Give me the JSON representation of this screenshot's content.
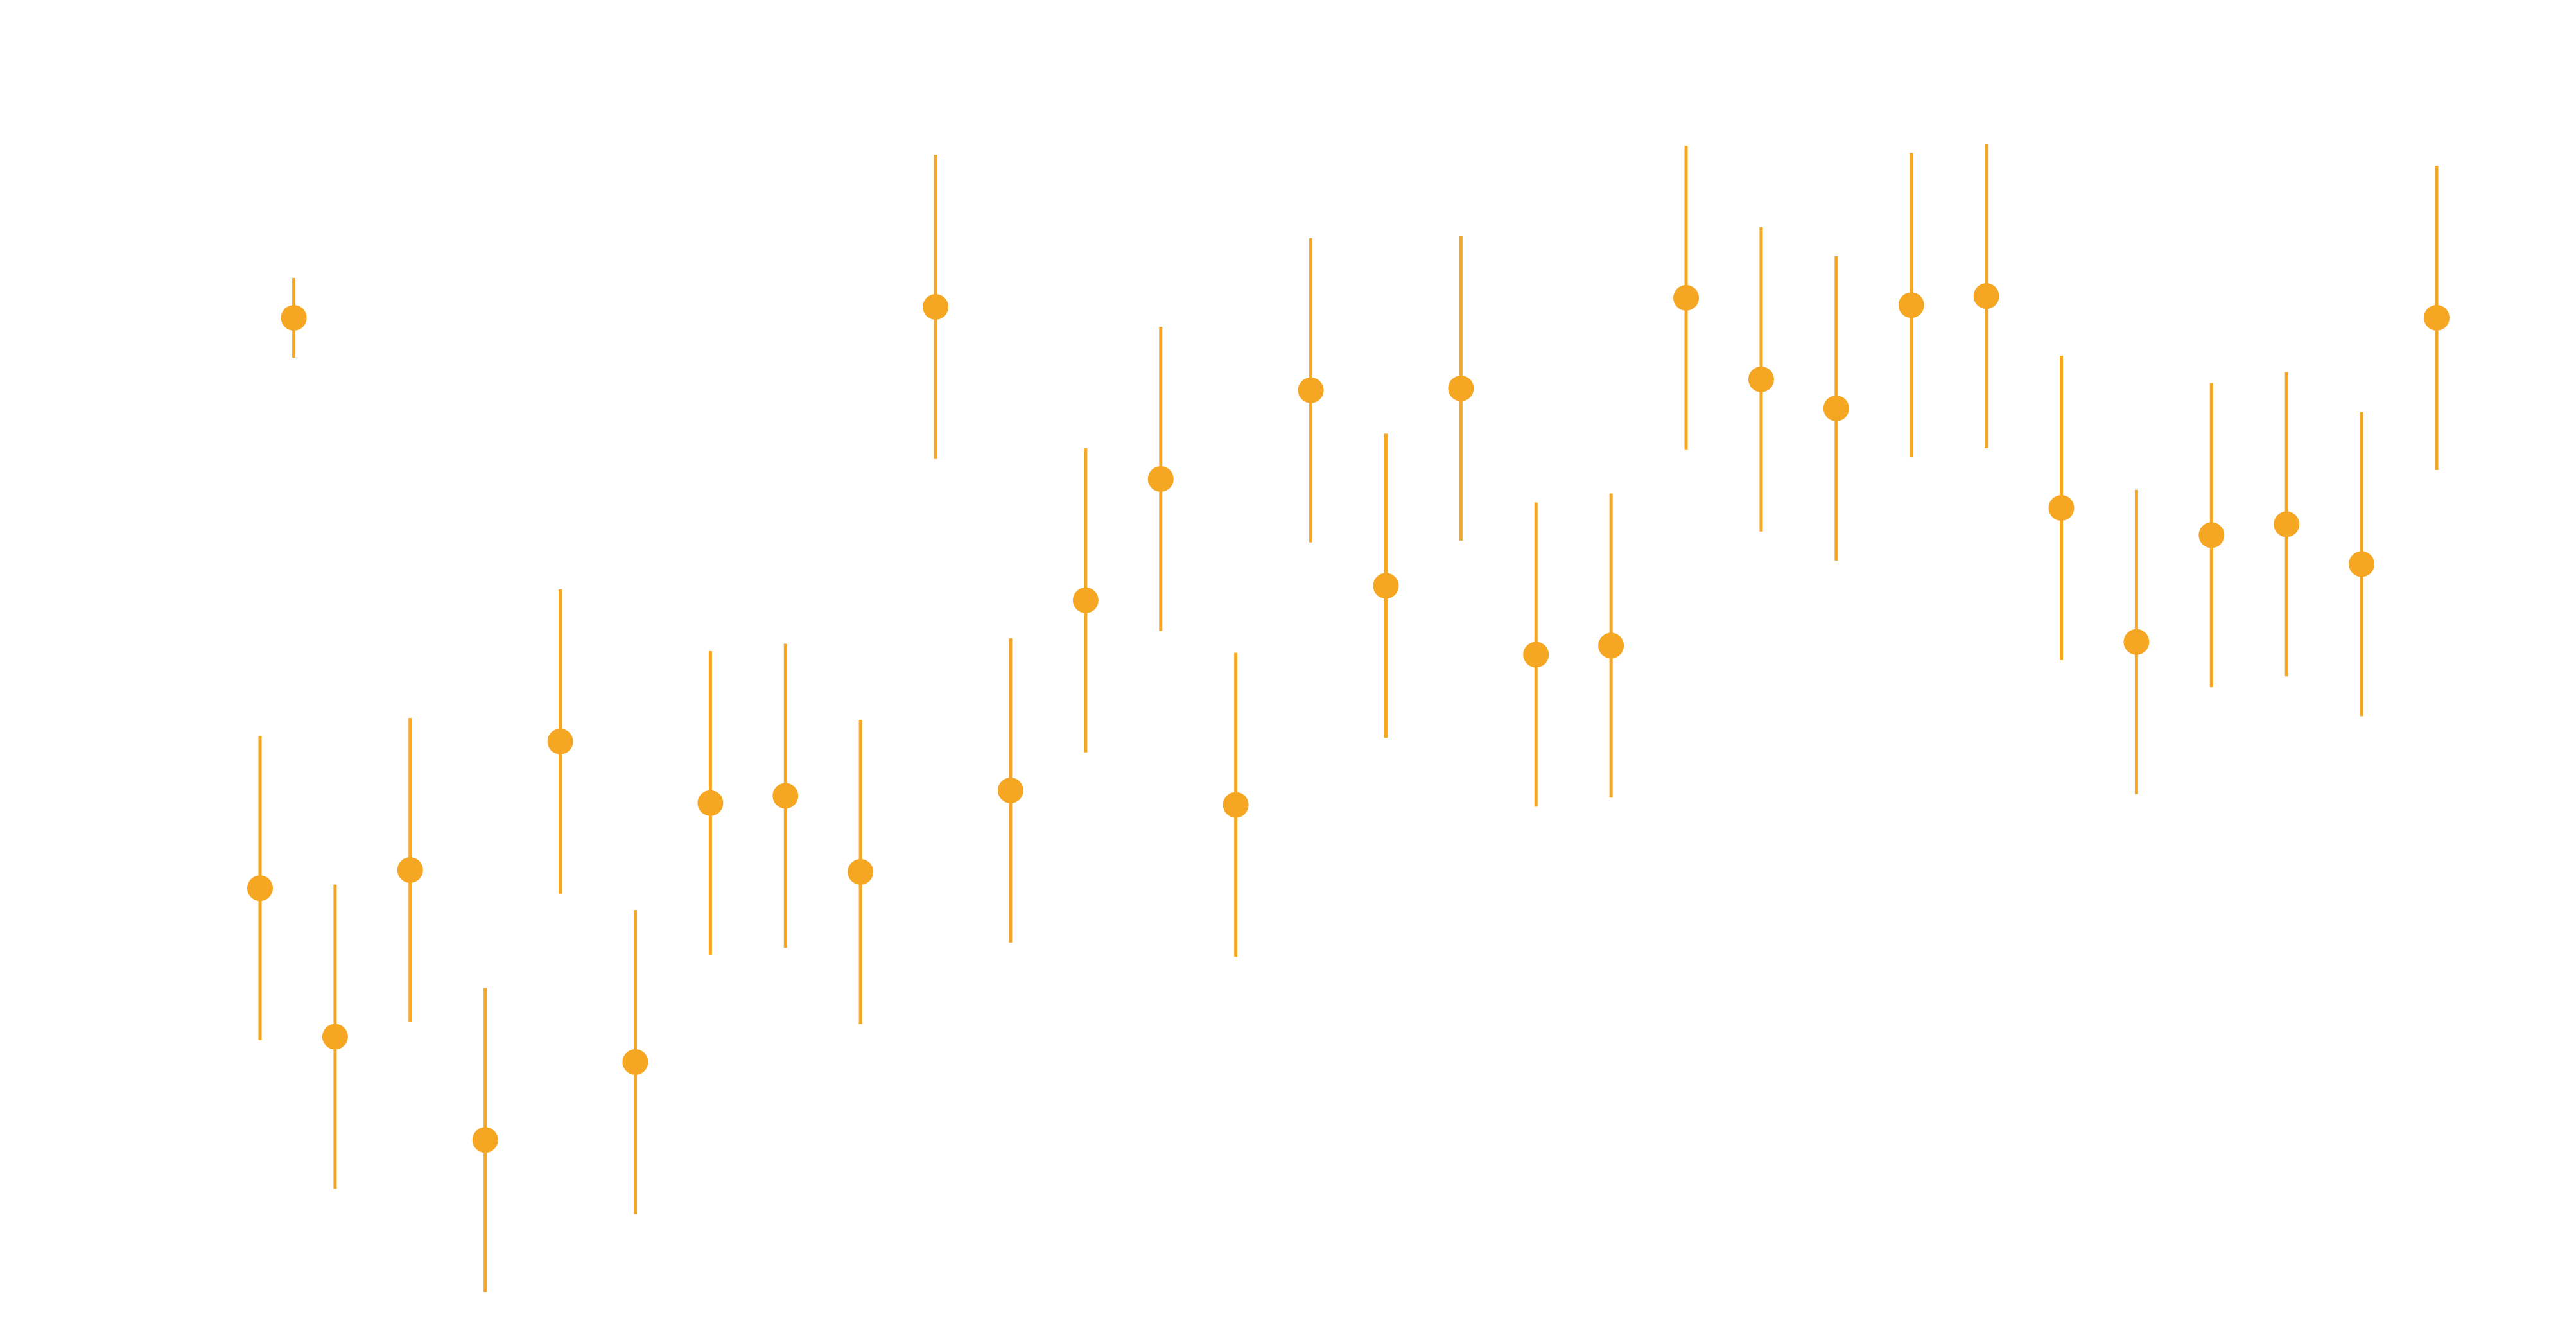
{
  "chart_data": {
    "type": "scatter",
    "error_bars": true,
    "title": "",
    "xlabel": "",
    "ylabel": "",
    "xlim": [
      1,
      30.5
    ],
    "ylim": [
      0.35,
      1.0
    ],
    "grid": false,
    "legend": "none",
    "colors": {
      "marker": "#F5A623",
      "error_bar": "#F5A623",
      "background": "#FFFFFF"
    },
    "series": [
      {
        "points": [
          {
            "x": 1.45,
            "y": 0.883,
            "low": 0.861,
            "high": 0.905
          },
          {
            "x": 1,
            "y": 0.568,
            "low": 0.484,
            "high": 0.652
          },
          {
            "x": 2,
            "y": 0.486,
            "low": 0.402,
            "high": 0.57
          },
          {
            "x": 3,
            "y": 0.578,
            "low": 0.494,
            "high": 0.662
          },
          {
            "x": 4,
            "y": 0.429,
            "low": 0.345,
            "high": 0.513
          },
          {
            "x": 5,
            "y": 0.649,
            "low": 0.565,
            "high": 0.733
          },
          {
            "x": 6,
            "y": 0.472,
            "low": 0.388,
            "high": 0.556
          },
          {
            "x": 7,
            "y": 0.615,
            "low": 0.531,
            "high": 0.699
          },
          {
            "x": 8,
            "y": 0.619,
            "low": 0.535,
            "high": 0.703
          },
          {
            "x": 9,
            "y": 0.577,
            "low": 0.493,
            "high": 0.661
          },
          {
            "x": 10,
            "y": 0.889,
            "low": 0.805,
            "high": 0.973
          },
          {
            "x": 11,
            "y": 0.622,
            "low": 0.538,
            "high": 0.706
          },
          {
            "x": 12,
            "y": 0.727,
            "low": 0.643,
            "high": 0.811
          },
          {
            "x": 13,
            "y": 0.794,
            "low": 0.71,
            "high": 0.878
          },
          {
            "x": 14,
            "y": 0.614,
            "low": 0.53,
            "high": 0.698
          },
          {
            "x": 15,
            "y": 0.843,
            "low": 0.759,
            "high": 0.927
          },
          {
            "x": 16,
            "y": 0.735,
            "low": 0.651,
            "high": 0.819
          },
          {
            "x": 17,
            "y": 0.844,
            "low": 0.76,
            "high": 0.928
          },
          {
            "x": 18,
            "y": 0.697,
            "low": 0.613,
            "high": 0.781
          },
          {
            "x": 19,
            "y": 0.702,
            "low": 0.618,
            "high": 0.786
          },
          {
            "x": 20,
            "y": 0.894,
            "low": 0.81,
            "high": 0.978
          },
          {
            "x": 21,
            "y": 0.849,
            "low": 0.765,
            "high": 0.933
          },
          {
            "x": 22,
            "y": 0.833,
            "low": 0.749,
            "high": 0.917
          },
          {
            "x": 23,
            "y": 0.89,
            "low": 0.806,
            "high": 0.974
          },
          {
            "x": 24,
            "y": 0.895,
            "low": 0.811,
            "high": 0.979
          },
          {
            "x": 25,
            "y": 0.778,
            "low": 0.694,
            "high": 0.862
          },
          {
            "x": 26,
            "y": 0.704,
            "low": 0.62,
            "high": 0.788
          },
          {
            "x": 27,
            "y": 0.763,
            "low": 0.679,
            "high": 0.847
          },
          {
            "x": 28,
            "y": 0.769,
            "low": 0.685,
            "high": 0.853
          },
          {
            "x": 29,
            "y": 0.747,
            "low": 0.663,
            "high": 0.831
          },
          {
            "x": 30,
            "y": 0.883,
            "low": 0.799,
            "high": 0.967
          }
        ]
      }
    ]
  }
}
